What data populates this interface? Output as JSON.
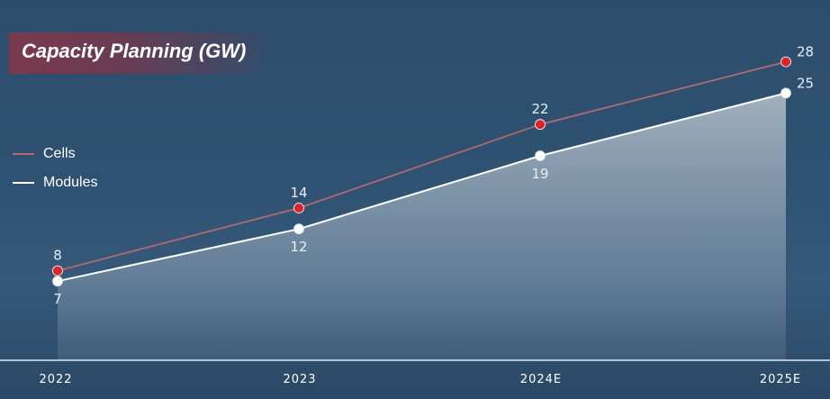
{
  "chart_data": {
    "type": "line",
    "title": "Capacity Planning (GW)",
    "categories": [
      "2022",
      "2023",
      "2024E",
      "2025E"
    ],
    "series": [
      {
        "name": "Cells",
        "values": [
          8,
          14,
          22,
          28
        ],
        "color": "#d9262c",
        "line_color": "#b06a72"
      },
      {
        "name": "Modules",
        "values": [
          7,
          12,
          19,
          25
        ],
        "color": "#ffffff",
        "line_color": "#ffffff",
        "area_fill": true
      }
    ],
    "ylim": [
      0,
      30
    ],
    "grid": false,
    "legend_position": "left"
  }
}
